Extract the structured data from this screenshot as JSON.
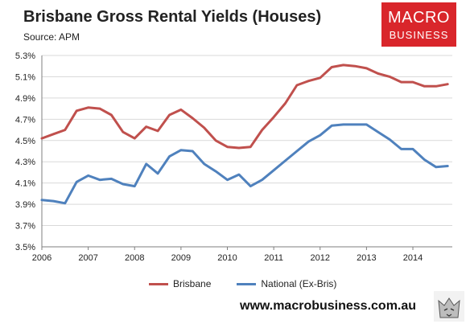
{
  "header": {
    "title": "Brisbane Gross Rental Yields (Houses)",
    "source": "Source: APM"
  },
  "logo": {
    "line1": "MACRO",
    "line2": "BUSINESS",
    "color": "#d9262b"
  },
  "footer": {
    "website": "www.macrobusiness.com.au",
    "emblem_icon": "wolf-icon"
  },
  "chart_data": {
    "type": "line",
    "title": "Brisbane Gross Rental Yields (Houses)",
    "x": [
      2006.0,
      2006.25,
      2006.5,
      2006.75,
      2007.0,
      2007.25,
      2007.5,
      2007.75,
      2008.0,
      2008.25,
      2008.5,
      2008.75,
      2009.0,
      2009.25,
      2009.5,
      2009.75,
      2010.0,
      2010.25,
      2010.5,
      2010.75,
      2011.0,
      2011.25,
      2011.5,
      2011.75,
      2012.0,
      2012.25,
      2012.5,
      2012.75,
      2013.0,
      2013.25,
      2013.5,
      2013.75,
      2014.0,
      2014.25,
      2014.5,
      2014.75
    ],
    "series": [
      {
        "name": "Brisbane",
        "color": "#c0504d",
        "values": [
          4.52,
          4.56,
          4.6,
          4.78,
          4.81,
          4.8,
          4.74,
          4.58,
          4.52,
          4.63,
          4.59,
          4.74,
          4.79,
          4.71,
          4.62,
          4.5,
          4.44,
          4.43,
          4.44,
          4.6,
          4.72,
          4.85,
          5.02,
          5.06,
          5.09,
          5.19,
          5.21,
          5.2,
          5.18,
          5.13,
          5.1,
          5.05,
          5.05,
          5.01,
          5.01,
          5.03
        ]
      },
      {
        "name": "National (Ex-Bris)",
        "color": "#4f81bd",
        "values": [
          3.94,
          3.93,
          3.91,
          4.11,
          4.17,
          4.13,
          4.14,
          4.09,
          4.07,
          4.28,
          4.19,
          4.35,
          4.41,
          4.4,
          4.28,
          4.21,
          4.13,
          4.18,
          4.07,
          4.13,
          4.22,
          4.31,
          4.4,
          4.49,
          4.55,
          4.64,
          4.65,
          4.65,
          4.65,
          4.58,
          4.51,
          4.42,
          4.42,
          4.32,
          4.25,
          4.26
        ]
      }
    ],
    "x_ticks": [
      "2006",
      "2007",
      "2008",
      "2009",
      "2010",
      "2011",
      "2012",
      "2013",
      "2014"
    ],
    "y_ticks": [
      "3.5%",
      "3.7%",
      "3.9%",
      "4.1%",
      "4.3%",
      "4.5%",
      "4.7%",
      "4.9%",
      "5.1%",
      "5.3%"
    ],
    "xlim": [
      2006,
      2014.85
    ],
    "ylim": [
      3.5,
      5.3
    ],
    "grid": "horizontal",
    "legend_position": "bottom"
  }
}
